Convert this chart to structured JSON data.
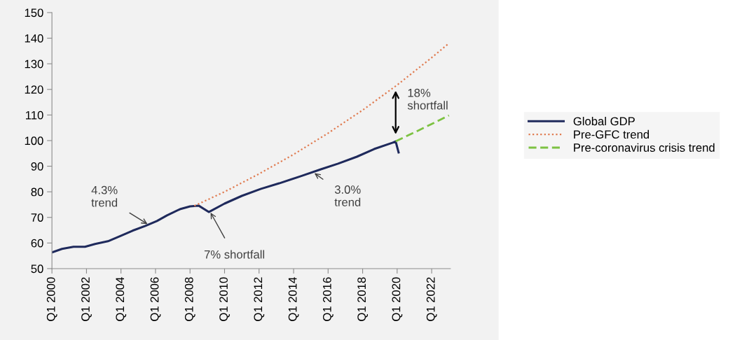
{
  "chart_data": {
    "type": "line",
    "xlim": [
      "2000-01",
      "2023-02"
    ],
    "ylim": [
      50,
      150
    ],
    "xticks": [
      {
        "value": "2000-01",
        "label": "Q1 2000"
      },
      {
        "value": "2002-01",
        "label": "Q1 2002"
      },
      {
        "value": "2004-01",
        "label": "Q1 2004"
      },
      {
        "value": "2006-01",
        "label": "Q1 2006"
      },
      {
        "value": "2008-01",
        "label": "Q1 2008"
      },
      {
        "value": "2010-01",
        "label": "Q1 2010"
      },
      {
        "value": "2012-01",
        "label": "Q1 2012"
      },
      {
        "value": "2014-01",
        "label": "Q1 2014"
      },
      {
        "value": "2016-01",
        "label": "Q1 2016"
      },
      {
        "value": "2018-01",
        "label": "Q1 2018"
      },
      {
        "value": "2020-01",
        "label": "Q1 2020"
      },
      {
        "value": "2022-01",
        "label": "Q1 2022"
      }
    ],
    "yticks": [
      50,
      60,
      70,
      80,
      90,
      100,
      110,
      120,
      130,
      140,
      150
    ],
    "grid": false,
    "legend": "right",
    "series": [
      {
        "name": "Global GDP",
        "color": "#1f2a5c",
        "line_style": "solid",
        "x": [
          "2000-01",
          "2000-08",
          "2001-04",
          "2001-12",
          "2002-07",
          "2003-04",
          "2003-12",
          "2004-09",
          "2005-06",
          "2006-02",
          "2006-09",
          "2007-06",
          "2008-01",
          "2008-07",
          "2009-02",
          "2010-01",
          "2011-01",
          "2012-02",
          "2013-03",
          "2014-06",
          "2015-08",
          "2016-08",
          "2017-09",
          "2018-09",
          "2019-10",
          "2019-12",
          "2020-02"
        ],
        "values": [
          56.3,
          57.7,
          58.5,
          58.5,
          59.6,
          60.7,
          62.6,
          64.8,
          66.7,
          68.6,
          70.8,
          73.2,
          74.3,
          74.6,
          72.1,
          75.4,
          78.4,
          81.1,
          83.3,
          86.1,
          88.8,
          91.0,
          93.7,
          96.7,
          99.2,
          99.7,
          95.4
        ]
      },
      {
        "name": "Pre-GFC trend",
        "color": "#e07b50",
        "line_style": "dotted",
        "x": [
          "2008-04",
          "2010-01",
          "2012-01",
          "2014-01",
          "2016-01",
          "2018-01",
          "2020-01",
          "2022-01",
          "2023-01"
        ],
        "values": [
          74.5,
          80.0,
          87.0,
          94.6,
          102.9,
          111.9,
          121.7,
          132.4,
          138.0
        ]
      },
      {
        "name": "Pre-coronavirus crisis trend",
        "color": "#7dc242",
        "line_style": "dashed",
        "x": [
          "2019-12",
          "2021-01",
          "2022-01",
          "2023-01"
        ],
        "values": [
          99.7,
          103.2,
          106.5,
          109.8
        ]
      }
    ],
    "annotations": [
      {
        "text": "4.3%\ntrend",
        "x": "2005-08",
        "y": 67.2
      },
      {
        "text": "7% shortfall",
        "x": "2009-03",
        "y": 72.2
      },
      {
        "text": "3.0%\ntrend",
        "x": "2015-03",
        "y": 87.5
      },
      "18%\nshortfall"
    ]
  }
}
